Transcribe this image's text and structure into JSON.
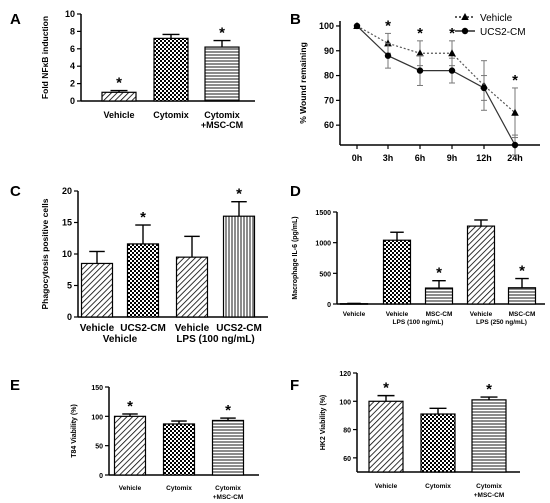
{
  "chart_data": [
    {
      "panel": "A",
      "type": "bar",
      "ylabel": "Fold NFκB induction",
      "ylim": [
        0,
        10
      ],
      "yticks": [
        0,
        2,
        4,
        6,
        8,
        10
      ],
      "categories": [
        "Vehicle",
        "Cytomix",
        "Cytomix\n+MSC-CM"
      ],
      "values": [
        1.0,
        7.2,
        6.2
      ],
      "errors": [
        0.2,
        0.45,
        0.75
      ],
      "fills": [
        "hatch-diag",
        "check",
        "hatch-horiz"
      ],
      "stars": [
        true,
        false,
        true
      ]
    },
    {
      "panel": "B",
      "type": "line",
      "ylabel": "% Wound remaining",
      "ylim": [
        52,
        102
      ],
      "yticks": [
        60,
        70,
        80,
        90,
        100
      ],
      "categories": [
        "0h",
        "3h",
        "6h",
        "9h",
        "12h",
        "24h"
      ],
      "series": [
        {
          "name": "Vehicle",
          "marker": "triangle",
          "dash": true,
          "values": [
            100,
            93,
            89,
            89,
            76,
            65
          ],
          "errors": [
            0,
            4,
            5,
            5,
            10,
            10
          ]
        },
        {
          "name": "UCS2-CM",
          "marker": "circle",
          "dash": false,
          "values": [
            100,
            88,
            82,
            82,
            75,
            52
          ],
          "errors": [
            0,
            5,
            6,
            5,
            5,
            4
          ]
        }
      ],
      "stars": [
        false,
        true,
        true,
        true,
        false,
        true
      ]
    },
    {
      "panel": "C",
      "type": "bar",
      "ylabel": "Phagocytosis positive cells",
      "ylim": [
        0,
        20
      ],
      "yticks": [
        0,
        5,
        10,
        15,
        20
      ],
      "categories": [
        "Vehicle",
        "UCS2-CM",
        "Vehicle",
        "UCS2-CM"
      ],
      "group_labels": [
        "Vehicle",
        "LPS (100 ng/mL)"
      ],
      "values": [
        8.5,
        11.6,
        9.5,
        16.0
      ],
      "errors": [
        1.9,
        3.0,
        3.3,
        2.3
      ],
      "fills": [
        "hatch-diag",
        "check",
        "hatch-diag",
        "hatch-vert"
      ],
      "stars": [
        false,
        true,
        false,
        true
      ]
    },
    {
      "panel": "D",
      "type": "bar",
      "ylabel": "Macrophage IL-6 (pg/mL)",
      "ylim": [
        0,
        1500
      ],
      "yticks": [
        0,
        500,
        1000,
        1500
      ],
      "categories": [
        "Vehicle",
        "Vehicle",
        "MSC-CM",
        "Vehicle",
        "MSC-CM"
      ],
      "group_labels": [
        "LPS (100 ng/mL)",
        "LPS (250 ng/mL)"
      ],
      "values": [
        5,
        1040,
        260,
        1270,
        265
      ],
      "errors": [
        5,
        130,
        120,
        100,
        150
      ],
      "fills": [
        "none",
        "check",
        "hatch-horiz",
        "hatch-diag",
        "hatch-horiz"
      ],
      "stars": [
        false,
        false,
        true,
        false,
        true
      ]
    },
    {
      "panel": "E",
      "type": "bar",
      "ylabel": "T84 Viability (%)",
      "ylim": [
        0,
        150
      ],
      "yticks": [
        0,
        50,
        100,
        150
      ],
      "categories": [
        "Vehicle",
        "Cytomix",
        "Cytomix\n+MSC-CM"
      ],
      "values": [
        100,
        87,
        93
      ],
      "errors": [
        4,
        5,
        4
      ],
      "fills": [
        "hatch-diag",
        "check",
        "hatch-horiz"
      ],
      "stars": [
        true,
        false,
        true
      ]
    },
    {
      "panel": "F",
      "type": "bar",
      "ylabel": "HK2 Viability (%)",
      "ylim": [
        50,
        120
      ],
      "yticks": [
        60,
        80,
        100,
        120
      ],
      "categories": [
        "Vehicle",
        "Cytomix",
        "Cytomix\n+MSC-CM"
      ],
      "values": [
        100,
        91,
        101
      ],
      "errors": [
        4,
        4,
        2
      ],
      "fills": [
        "hatch-diag",
        "check",
        "hatch-horiz"
      ],
      "stars": [
        true,
        false,
        true
      ]
    }
  ]
}
